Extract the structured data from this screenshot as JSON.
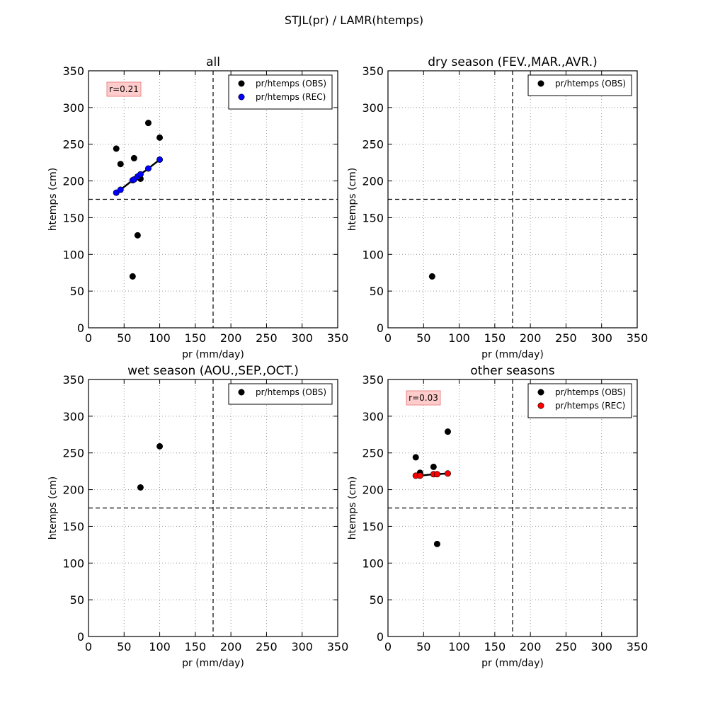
{
  "figure": {
    "title": "STJL(pr) / LAMR(htemps)"
  },
  "colors": {
    "obs": "#000000",
    "rec_all": "#0000ff",
    "rec_other": "#ff0000",
    "fit_line": "#000000",
    "r_box_fill": "#ffcccc",
    "r_box_edge": "#e88888",
    "grid": "#999999"
  },
  "chart_data": [
    {
      "type": "scatter",
      "title": "all",
      "xlabel": "pr (mm/day)",
      "ylabel": "htemps (cm)",
      "xlim": [
        0,
        350
      ],
      "ylim": [
        0,
        350
      ],
      "xticks": [
        0,
        50,
        100,
        150,
        200,
        250,
        300,
        350
      ],
      "yticks": [
        0,
        50,
        100,
        150,
        200,
        250,
        300,
        350
      ],
      "grid": true,
      "threshold_x": 175,
      "threshold_y": 175,
      "legend_position": "top-right",
      "annotation": "r=0.21",
      "series": [
        {
          "name": "pr/htemps (OBS)",
          "color": "#000000",
          "points": [
            [
              39,
              244
            ],
            [
              45,
              223
            ],
            [
              84,
              279
            ],
            [
              100,
              259
            ],
            [
              64,
              231
            ],
            [
              73,
              203
            ],
            [
              69,
              126
            ],
            [
              62,
              70
            ]
          ]
        },
        {
          "name": "pr/htemps (REC)",
          "color": "#0000ff",
          "line": true,
          "points": [
            [
              39,
              184
            ],
            [
              45,
              188
            ],
            [
              62,
              201
            ],
            [
              64,
              202
            ],
            [
              69,
              206
            ],
            [
              73,
              209
            ],
            [
              84,
              217
            ],
            [
              100,
              229
            ]
          ]
        }
      ]
    },
    {
      "type": "scatter",
      "title": "dry season (FEV.,MAR.,AVR.)",
      "xlabel": "pr (mm/day)",
      "ylabel": "htemps (cm)",
      "xlim": [
        0,
        350
      ],
      "ylim": [
        0,
        350
      ],
      "xticks": [
        0,
        50,
        100,
        150,
        200,
        250,
        300,
        350
      ],
      "yticks": [
        0,
        50,
        100,
        150,
        200,
        250,
        300,
        350
      ],
      "grid": true,
      "threshold_x": 175,
      "threshold_y": 175,
      "legend_position": "top-right",
      "series": [
        {
          "name": "pr/htemps (OBS)",
          "color": "#000000",
          "points": [
            [
              62,
              70
            ]
          ]
        }
      ]
    },
    {
      "type": "scatter",
      "title": "wet season (AOU.,SEP.,OCT.)",
      "xlabel": "pr (mm/day)",
      "ylabel": "htemps (cm)",
      "xlim": [
        0,
        350
      ],
      "ylim": [
        0,
        350
      ],
      "xticks": [
        0,
        50,
        100,
        150,
        200,
        250,
        300,
        350
      ],
      "yticks": [
        0,
        50,
        100,
        150,
        200,
        250,
        300,
        350
      ],
      "grid": true,
      "threshold_x": 175,
      "threshold_y": 175,
      "legend_position": "top-right",
      "series": [
        {
          "name": "pr/htemps (OBS)",
          "color": "#000000",
          "points": [
            [
              100,
              259
            ],
            [
              73,
              203
            ]
          ]
        }
      ]
    },
    {
      "type": "scatter",
      "title": "other seasons",
      "xlabel": "pr (mm/day)",
      "ylabel": "htemps (cm)",
      "xlim": [
        0,
        350
      ],
      "ylim": [
        0,
        350
      ],
      "xticks": [
        0,
        50,
        100,
        150,
        200,
        250,
        300,
        350
      ],
      "yticks": [
        0,
        50,
        100,
        150,
        200,
        250,
        300,
        350
      ],
      "grid": true,
      "threshold_x": 175,
      "threshold_y": 175,
      "legend_position": "top-right",
      "annotation": "r=0.03",
      "series": [
        {
          "name": "pr/htemps (OBS)",
          "color": "#000000",
          "points": [
            [
              39,
              244
            ],
            [
              45,
              223
            ],
            [
              84,
              279
            ],
            [
              64,
              231
            ],
            [
              69,
              126
            ]
          ]
        },
        {
          "name": "pr/htemps (REC)",
          "color": "#ff0000",
          "line": true,
          "points": [
            [
              39,
              219
            ],
            [
              45,
              219
            ],
            [
              64,
              221
            ],
            [
              69,
              221
            ],
            [
              84,
              222
            ]
          ]
        }
      ]
    }
  ]
}
